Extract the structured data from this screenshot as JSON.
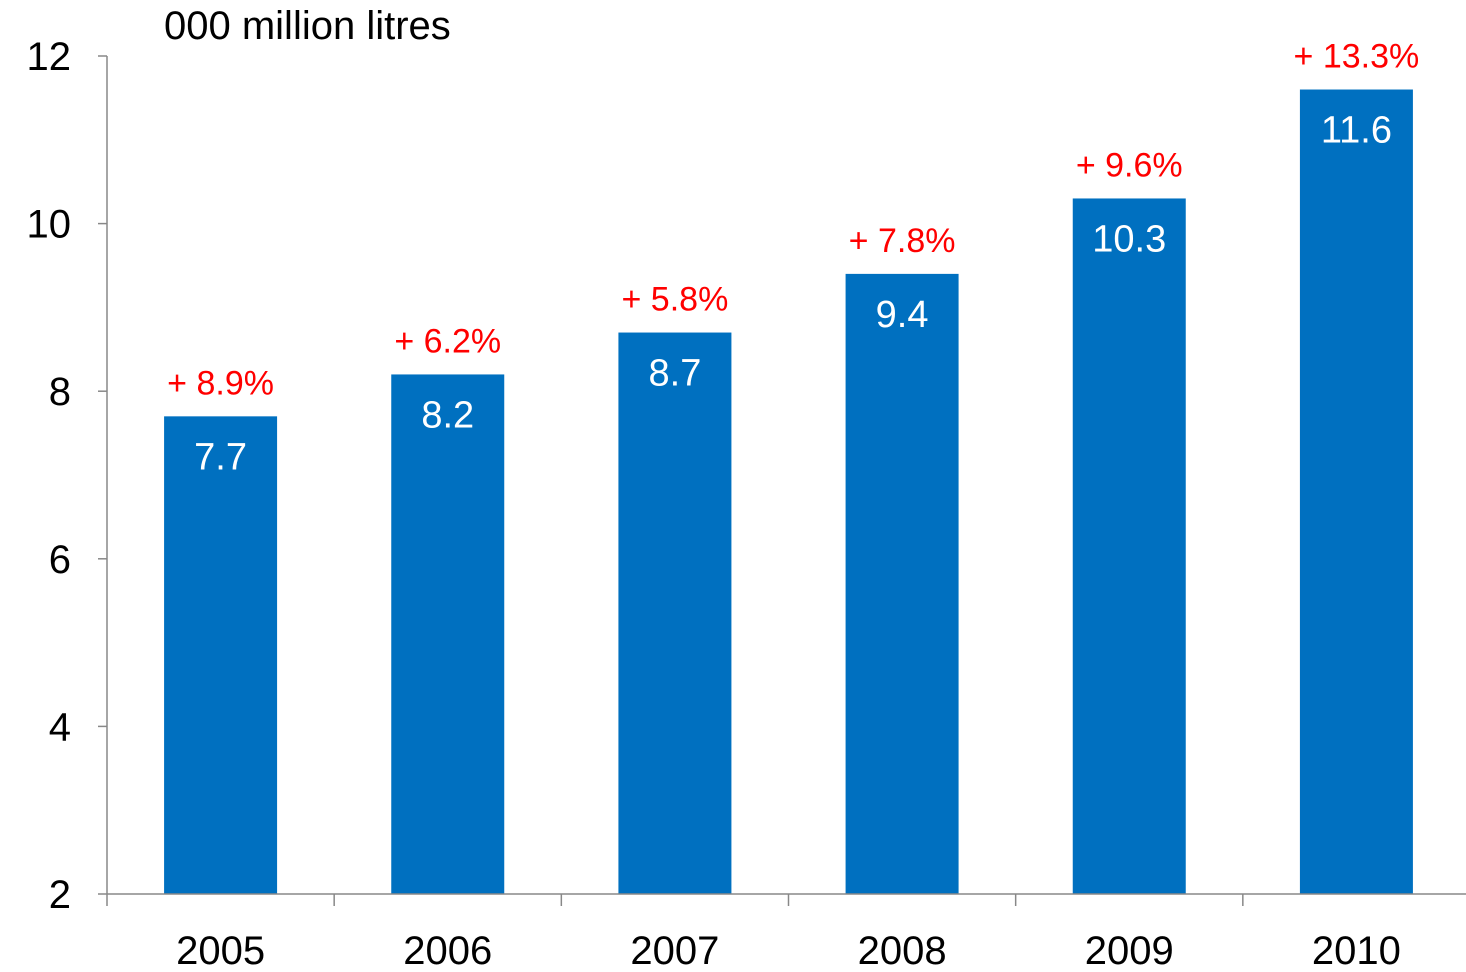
{
  "chart_data": {
    "type": "bar",
    "unit_label": "000 million litres",
    "categories": [
      "2005",
      "2006",
      "2007",
      "2008",
      "2009",
      "2010"
    ],
    "values": [
      7.7,
      8.2,
      8.7,
      9.4,
      10.3,
      11.6
    ],
    "value_labels": [
      "7.7",
      "8.2",
      "8.7",
      "9.4",
      "10.3",
      "11.6"
    ],
    "growth_labels": [
      "+ 8.9%",
      "+ 6.2%",
      "+ 5.8%",
      "+ 7.8%",
      "+ 9.6%",
      "+ 13.3%"
    ],
    "ylim": [
      2,
      12
    ],
    "yticks": [
      2,
      4,
      6,
      8,
      10,
      12
    ],
    "grid": false,
    "colors": {
      "bar": "#0070c0",
      "growth": "#ff0000",
      "value_label": "#ffffff",
      "axis": "#888888"
    }
  }
}
